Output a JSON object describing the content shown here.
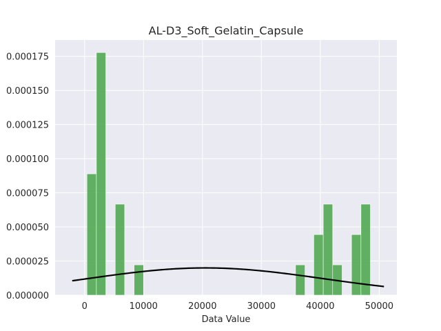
{
  "chart_data": {
    "type": "bar",
    "title": "AL-D3_Soft_Gelatin_Capsule",
    "xlabel": "Data Value",
    "ylabel": "",
    "xlim": [
      -5000,
      53000
    ],
    "ylim": [
      0,
      0.000187
    ],
    "grid": true,
    "xticks": [
      0,
      10000,
      20000,
      30000,
      40000,
      50000
    ],
    "xtick_labels": [
      "0",
      "10000",
      "20000",
      "30000",
      "40000",
      "50000"
    ],
    "yticks": [
      0,
      2.5e-05,
      5e-05,
      7.5e-05,
      0.0001,
      0.000125,
      0.00015,
      0.000175
    ],
    "ytick_labels": [
      "0.000000",
      "0.000025",
      "0.000050",
      "0.000075",
      "0.000100",
      "0.000125",
      "0.000150",
      "0.000175"
    ],
    "bar_color": "#4da64d",
    "line_color": "#000000",
    "histogram": {
      "bin_width": 1600,
      "bins": [
        {
          "x0": 400,
          "density": 8.89e-05
        },
        {
          "x0": 2000,
          "density": 0.0001778
        },
        {
          "x0": 5200,
          "density": 6.67e-05
        },
        {
          "x0": 8400,
          "density": 2.22e-05
        },
        {
          "x0": 35800,
          "density": 2.22e-05
        },
        {
          "x0": 38900,
          "density": 4.44e-05
        },
        {
          "x0": 40500,
          "density": 6.67e-05
        },
        {
          "x0": 42100,
          "density": 2.22e-05
        },
        {
          "x0": 45300,
          "density": 4.44e-05
        },
        {
          "x0": 46900,
          "density": 6.67e-05
        }
      ]
    },
    "normal_fit": {
      "mean": 20500,
      "std": 20000,
      "x_range": [
        -2100,
        50800
      ]
    }
  }
}
